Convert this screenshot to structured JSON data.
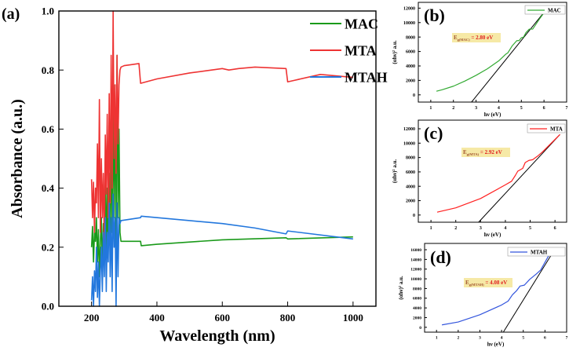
{
  "chart_data": [
    {
      "panel": "(a)",
      "type": "line",
      "xlabel": "Wavelength (nm)",
      "ylabel": "Absorbance (a.u.)",
      "xlim": [
        100,
        1070
      ],
      "ylim": [
        0,
        1.0
      ],
      "xticks": [
        200,
        400,
        600,
        800,
        1000
      ],
      "yticks": [
        0.0,
        0.2,
        0.4,
        0.6,
        0.8,
        1.0
      ],
      "legend": "top-right",
      "series": [
        {
          "name": "MAC",
          "color": "#1a9a1a",
          "x": [
            200,
            203,
            206,
            209,
            212,
            215,
            218,
            221,
            224,
            227,
            230,
            233,
            236,
            239,
            242,
            245,
            248,
            251,
            254,
            257,
            260,
            263,
            266,
            269,
            272,
            275,
            278,
            281,
            284,
            287,
            290,
            350,
            352,
            400,
            600,
            795,
            800,
            1000
          ],
          "y": [
            0.2,
            0.27,
            0.15,
            0.25,
            0.22,
            0.3,
            0.15,
            0.26,
            0.1,
            0.22,
            0.3,
            0.12,
            0.28,
            0.2,
            0.5,
            0.15,
            0.4,
            0.2,
            0.45,
            0.2,
            0.6,
            0.25,
            0.7,
            0.3,
            0.75,
            0.2,
            0.85,
            0.3,
            0.6,
            0.25,
            0.22,
            0.22,
            0.205,
            0.21,
            0.225,
            0.232,
            0.228,
            0.235
          ]
        },
        {
          "name": "MTA",
          "color": "#ee3333",
          "x": [
            200,
            203,
            206,
            209,
            212,
            215,
            218,
            221,
            224,
            227,
            230,
            233,
            236,
            239,
            242,
            245,
            248,
            251,
            254,
            257,
            260,
            263,
            266,
            269,
            272,
            275,
            278,
            281,
            284,
            287,
            290,
            300,
            320,
            345,
            350,
            400,
            500,
            600,
            620,
            650,
            700,
            795,
            800,
            820,
            900,
            950,
            1000
          ],
          "y": [
            0.43,
            0.3,
            0.42,
            0.25,
            0.4,
            0.35,
            0.55,
            0.3,
            0.7,
            0.25,
            0.5,
            0.3,
            0.45,
            0.2,
            0.58,
            0.38,
            0.65,
            0.3,
            0.72,
            0.35,
            0.85,
            0.4,
            1.0,
            0.5,
            0.75,
            0.45,
            0.85,
            0.55,
            0.75,
            0.8,
            0.81,
            0.815,
            0.818,
            0.822,
            0.755,
            0.77,
            0.79,
            0.805,
            0.8,
            0.805,
            0.81,
            0.805,
            0.76,
            0.765,
            0.785,
            0.78,
            0.775
          ]
        },
        {
          "name": "MTAH",
          "color": "#2277dd",
          "x": [
            200,
            203,
            206,
            209,
            212,
            215,
            218,
            221,
            224,
            227,
            230,
            233,
            236,
            239,
            242,
            245,
            248,
            251,
            254,
            257,
            260,
            263,
            266,
            269,
            272,
            275,
            278,
            281,
            284,
            287,
            290,
            350,
            352,
            500,
            600,
            700,
            795,
            800,
            1000
          ],
          "y": [
            0.02,
            0.1,
            0.0,
            0.12,
            0.05,
            0.2,
            0.03,
            0.15,
            0.0,
            0.12,
            0.2,
            0.05,
            0.25,
            0.1,
            0.3,
            0.05,
            0.25,
            0.15,
            0.35,
            0.1,
            0.3,
            0.05,
            0.38,
            0.2,
            0.3,
            0.0,
            0.35,
            0.1,
            0.3,
            0.28,
            0.29,
            0.3,
            0.305,
            0.29,
            0.28,
            0.265,
            0.245,
            0.255,
            0.228
          ]
        }
      ]
    },
    {
      "panel": "(b)",
      "type": "line",
      "xlabel": "hν (eV)",
      "ylabel": "(αhν)² a.u.",
      "xlim": [
        0.45,
        7
      ],
      "ylim": [
        -1000,
        12800
      ],
      "xticks": [
        1,
        2,
        3,
        4,
        5,
        6,
        7
      ],
      "yticks": [
        0,
        2000,
        4000,
        6000,
        8000,
        10000,
        12000
      ],
      "legend": "top-right",
      "annotation": "E_g(MAC) = 2.80 eV",
      "eg_prefix": "E",
      "eg_sub": "g(MAC)",
      "eg_value": "= 2.80 eV",
      "series": [
        {
          "name": "MAC",
          "color": "#33aa33",
          "x": [
            1.25,
            1.5,
            2,
            2.5,
            3,
            3.5,
            4,
            4.3,
            4.4,
            4.6,
            4.8,
            4.9,
            5.0,
            5.1,
            5.2,
            5.35,
            5.5,
            5.8,
            6.15
          ],
          "y": [
            500,
            700,
            1200,
            1900,
            2700,
            3600,
            4700,
            5600,
            5800,
            6800,
            7500,
            7500,
            7900,
            8000,
            8600,
            9100,
            9100,
            10500,
            12000
          ]
        }
      ],
      "tangent": {
        "x": [
          2.8,
          6.15
        ],
        "y": [
          -1000,
          12000
        ]
      }
    },
    {
      "panel": "(c)",
      "type": "line",
      "xlabel": "hν (eV)",
      "ylabel": "(αhν)² a.u.",
      "xlim": [
        0.49,
        6.47
      ],
      "ylim": [
        -1000,
        13200
      ],
      "xticks": [
        1,
        2,
        3,
        4,
        5,
        6
      ],
      "yticks": [
        0,
        2000,
        4000,
        6000,
        8000,
        10000,
        12000
      ],
      "legend": "top-right",
      "annotation": "E_g(MTA) = 2.92 eV",
      "eg_prefix": "E",
      "eg_sub": "g(MTA)",
      "eg_value": "= 2.92 eV",
      "series": [
        {
          "name": "MTA",
          "color": "#ff2020",
          "x": [
            1.25,
            2,
            3,
            4,
            4.25,
            4.4,
            4.5,
            4.7,
            4.8,
            4.95,
            5.1,
            5.3,
            5.5,
            6.2
          ],
          "y": [
            400,
            1000,
            2300,
            4200,
            4700,
            5500,
            6100,
            6500,
            7300,
            7600,
            7700,
            8200,
            8800,
            11200
          ]
        }
      ],
      "tangent": {
        "x": [
          2.92,
          6.2
        ],
        "y": [
          -1000,
          11200
        ]
      }
    },
    {
      "panel": "(d)",
      "type": "line",
      "xlabel": "hν (eV)",
      "ylabel": "(αhν)² a.u.",
      "xlim": [
        0.45,
        7
      ],
      "ylim": [
        -1000,
        17300
      ],
      "xticks": [
        1,
        2,
        3,
        4,
        5,
        6,
        7
      ],
      "yticks": [
        0,
        2000,
        4000,
        6000,
        8000,
        10000,
        12000,
        14000,
        16000
      ],
      "legend": "top-right",
      "annotation": "E_g(MTAH) = 4.08 eV",
      "eg_prefix": "E",
      "eg_sub": "g(MTAH)",
      "eg_value": "= 4.08 eV",
      "series": [
        {
          "name": "MTAH",
          "color": "#3355dd",
          "x": [
            1.25,
            2,
            3,
            4,
            4.3,
            4.5,
            4.7,
            4.85,
            5.05,
            5.3,
            5.6,
            5.8,
            6.2
          ],
          "y": [
            500,
            1100,
            2600,
            4600,
            5400,
            6700,
            7600,
            8500,
            8700,
            9900,
            11000,
            11800,
            15000
          ]
        }
      ],
      "tangent": {
        "x": [
          4.08,
          6.3
        ],
        "y": [
          -1000,
          15000
        ]
      }
    }
  ]
}
